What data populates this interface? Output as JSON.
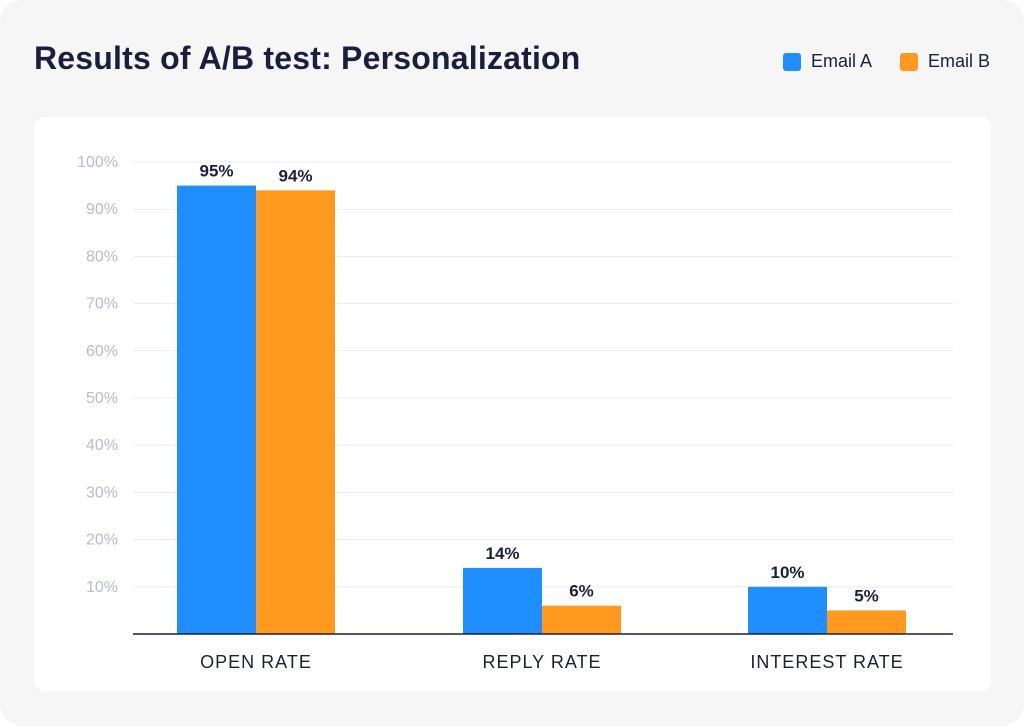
{
  "chart_data": {
    "type": "bar",
    "title": "Results of A/B test: Personalization",
    "categories": [
      "OPEN RATE",
      "REPLY RATE",
      "INTEREST RATE"
    ],
    "series": [
      {
        "name": "Email A",
        "color": "#1f8fff",
        "values": [
          95,
          14,
          10
        ],
        "labels": [
          "95%",
          "14%",
          "10%"
        ]
      },
      {
        "name": "Email B",
        "color": "#ff9a1f",
        "values": [
          94,
          6,
          5
        ],
        "labels": [
          "94%",
          "6%",
          "5%"
        ]
      }
    ],
    "y_ticks": [
      {
        "value": 10,
        "label": "10%"
      },
      {
        "value": 20,
        "label": "20%"
      },
      {
        "value": 30,
        "label": "30%"
      },
      {
        "value": 40,
        "label": "40%"
      },
      {
        "value": 50,
        "label": "50%"
      },
      {
        "value": 60,
        "label": "60%"
      },
      {
        "value": 70,
        "label": "70%"
      },
      {
        "value": 80,
        "label": "80%"
      },
      {
        "value": 90,
        "label": "90%"
      },
      {
        "value": 100,
        "label": "100%"
      }
    ],
    "ylim": [
      0,
      100
    ],
    "grid": true,
    "legend": "top-right",
    "xlabel": "",
    "ylabel": ""
  }
}
